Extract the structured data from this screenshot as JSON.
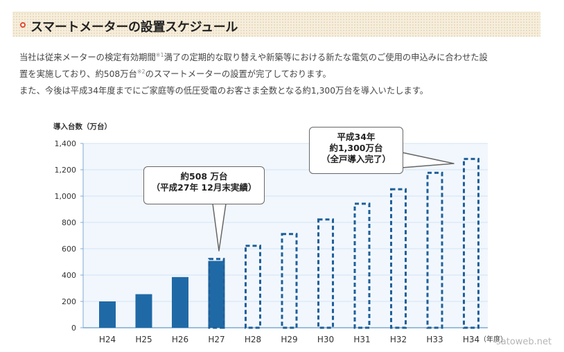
{
  "section": {
    "title": "スマートメーターの設置スケジュール"
  },
  "intro": {
    "line1": "当社は従来メーターの検定有効期間",
    "note1": "※1",
    "line1b": "満了の定期的な取り替えや新築等における新たな電気のご使用の申込みに合わせた設",
    "line2a": "置を実施しており、約508万台",
    "note2": "※2",
    "line2b": "のスマートメーターの設置が完了しております。",
    "line3": "また、今後は平成34年度までにご家庭等の低圧受電のお客さま全数となる約1,300万台を導入いたします。"
  },
  "callouts": {
    "actual": {
      "line1": "約508 万台",
      "line2": "（平成27年 12月末実績）"
    },
    "target": {
      "line1": "平成34年",
      "line2": "約1,300万台",
      "line3": "（全戸導入完了）"
    }
  },
  "watermark": "satoweb.net",
  "colors": {
    "actual_bar": "#1f6aa6",
    "planned_outline": "#1f5f99",
    "plot_background": "#f1f7fd",
    "grid": "#d3e3f2",
    "axis": "#7fa8cf"
  },
  "chart_data": {
    "type": "bar",
    "ylabel": "導入台数（万台）",
    "xunit": "（年度）",
    "ylim": [
      0,
      1400
    ],
    "yticks": [
      0,
      200,
      400,
      600,
      800,
      1000,
      1200,
      1400
    ],
    "ytick_labels": [
      "0",
      "200",
      "400",
      "600",
      "800",
      "1,000",
      "1,200",
      "1,400"
    ],
    "categories": [
      "H24",
      "H25",
      "H26",
      "H27",
      "H28",
      "H29",
      "H30",
      "H31",
      "H32",
      "H33",
      "H34"
    ],
    "series": [
      {
        "style": "solid",
        "values": [
          200,
          255,
          385,
          508,
          null,
          null,
          null,
          null,
          null,
          null,
          null
        ]
      },
      {
        "style": "dashed",
        "values": [
          null,
          null,
          null,
          530,
          630,
          720,
          830,
          950,
          1060,
          1185,
          1290
        ]
      }
    ],
    "grid": true,
    "legend": "none"
  }
}
